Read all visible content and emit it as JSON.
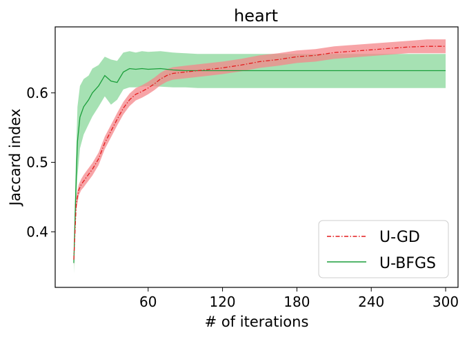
{
  "chart_data": {
    "type": "line",
    "title": "heart",
    "xlabel": "# of iterations",
    "ylabel": "Jaccard index",
    "xlim": [
      -15,
      310
    ],
    "ylim": [
      0.32,
      0.695
    ],
    "xticks": [
      60,
      120,
      180,
      240,
      300
    ],
    "yticks": [
      0.4,
      0.5,
      0.6
    ],
    "ytick_labels": [
      "0.4",
      "0.5",
      "0.6"
    ],
    "grid": false,
    "legend_position": "lower-right",
    "series": [
      {
        "name": "U-GD",
        "color": "#e41a1c",
        "fill_color": "#f4858a",
        "line_style": "dash-dot",
        "x": [
          0,
          2,
          4,
          6,
          8,
          10,
          15,
          20,
          25,
          30,
          35,
          40,
          45,
          50,
          55,
          60,
          65,
          70,
          75,
          80,
          90,
          100,
          110,
          120,
          135,
          150,
          165,
          180,
          195,
          210,
          225,
          240,
          255,
          270,
          285,
          300
        ],
        "y": [
          0.36,
          0.44,
          0.46,
          0.468,
          0.473,
          0.478,
          0.49,
          0.505,
          0.528,
          0.545,
          0.562,
          0.578,
          0.59,
          0.598,
          0.602,
          0.607,
          0.613,
          0.62,
          0.625,
          0.628,
          0.63,
          0.632,
          0.634,
          0.636,
          0.64,
          0.645,
          0.648,
          0.652,
          0.654,
          0.658,
          0.66,
          0.662,
          0.664,
          0.666,
          0.667,
          0.667
        ],
        "lower": [
          0.35,
          0.43,
          0.452,
          0.46,
          0.464,
          0.469,
          0.481,
          0.496,
          0.519,
          0.536,
          0.553,
          0.569,
          0.581,
          0.589,
          0.593,
          0.598,
          0.604,
          0.611,
          0.616,
          0.619,
          0.621,
          0.623,
          0.625,
          0.627,
          0.631,
          0.636,
          0.639,
          0.643,
          0.645,
          0.649,
          0.651,
          0.653,
          0.655,
          0.657,
          0.657,
          0.657
        ],
        "upper": [
          0.37,
          0.45,
          0.468,
          0.476,
          0.482,
          0.487,
          0.499,
          0.514,
          0.537,
          0.554,
          0.571,
          0.587,
          0.599,
          0.607,
          0.611,
          0.616,
          0.622,
          0.629,
          0.634,
          0.637,
          0.639,
          0.641,
          0.643,
          0.645,
          0.649,
          0.654,
          0.657,
          0.661,
          0.663,
          0.667,
          0.669,
          0.671,
          0.673,
          0.675,
          0.677,
          0.677
        ]
      },
      {
        "name": "U-BFGS",
        "color": "#1a9e3a",
        "fill_color": "#96dca6",
        "line_style": "solid",
        "x": [
          0,
          1,
          2,
          3,
          5,
          8,
          12,
          15,
          20,
          25,
          30,
          35,
          40,
          45,
          50,
          55,
          60,
          70,
          80,
          90,
          100,
          120,
          140,
          160,
          180,
          200,
          220,
          240,
          260,
          280,
          300
        ],
        "y": [
          0.355,
          0.42,
          0.48,
          0.53,
          0.565,
          0.58,
          0.59,
          0.6,
          0.61,
          0.625,
          0.617,
          0.615,
          0.63,
          0.635,
          0.634,
          0.635,
          0.634,
          0.635,
          0.633,
          0.632,
          0.632,
          0.632,
          0.632,
          0.632,
          0.632,
          0.632,
          0.632,
          0.632,
          0.632,
          0.632,
          0.632
        ],
        "lower": [
          0.34,
          0.39,
          0.44,
          0.48,
          0.52,
          0.54,
          0.555,
          0.566,
          0.58,
          0.595,
          0.583,
          0.59,
          0.605,
          0.608,
          0.608,
          0.609,
          0.61,
          0.609,
          0.608,
          0.608,
          0.607,
          0.607,
          0.607,
          0.607,
          0.607,
          0.607,
          0.607,
          0.607,
          0.607,
          0.607,
          0.607
        ],
        "upper": [
          0.37,
          0.45,
          0.52,
          0.58,
          0.61,
          0.62,
          0.625,
          0.635,
          0.64,
          0.652,
          0.648,
          0.646,
          0.658,
          0.66,
          0.658,
          0.66,
          0.659,
          0.66,
          0.658,
          0.657,
          0.656,
          0.656,
          0.656,
          0.656,
          0.656,
          0.656,
          0.656,
          0.656,
          0.656,
          0.656,
          0.656
        ]
      }
    ]
  }
}
